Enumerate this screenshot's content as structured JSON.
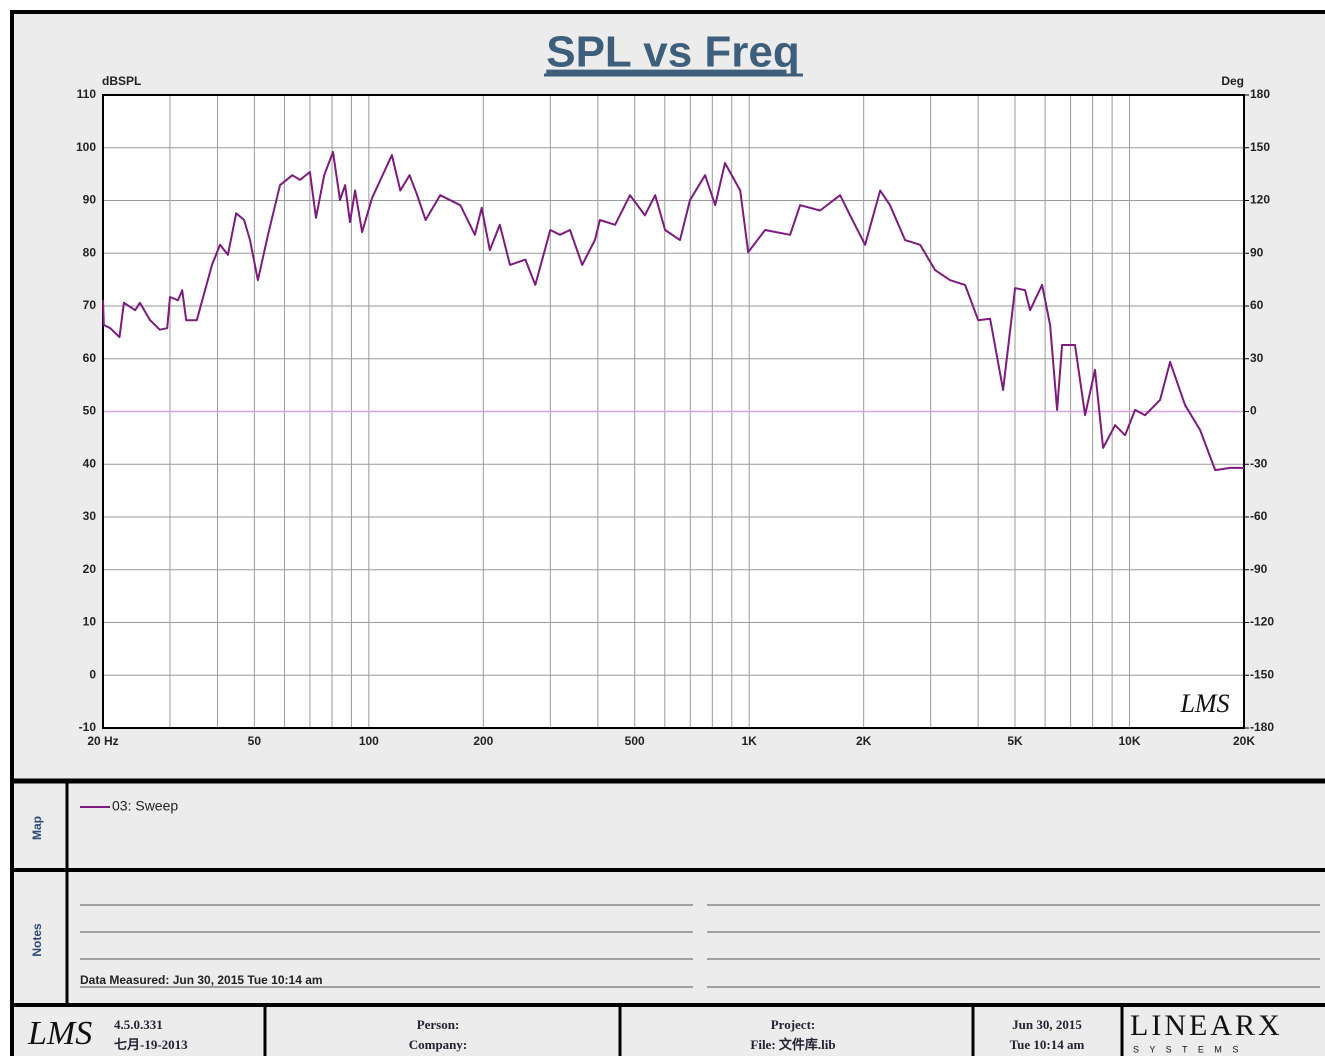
{
  "chart_data": {
    "type": "line",
    "title": "SPL vs Freq",
    "ylabel": "dBSPL",
    "y2label": "Deg",
    "xscale": "log",
    "xlim": [
      20,
      20000
    ],
    "xticks": [
      {
        "value": 20,
        "label": "20 Hz"
      },
      50,
      100,
      200,
      500,
      {
        "value": 1000,
        "label": "1K"
      },
      {
        "value": 2000,
        "label": "2K"
      },
      {
        "value": 5000,
        "label": "5K"
      },
      {
        "value": 10000,
        "label": "10K"
      },
      {
        "value": 20000,
        "label": "20K"
      }
    ],
    "x_minor_ticks": [
      30,
      40,
      60,
      70,
      80,
      90,
      300,
      400,
      600,
      700,
      800,
      900,
      3000,
      4000,
      6000,
      7000,
      8000,
      9000
    ],
    "ylim": [
      -10,
      110
    ],
    "yticks": [
      110,
      100,
      90,
      80,
      70,
      60,
      50,
      40,
      30,
      20,
      10,
      0,
      -10
    ],
    "y2lim": [
      -180,
      180
    ],
    "y2ticks": [
      180,
      150,
      120,
      90,
      60,
      30,
      0,
      -30,
      -60,
      -90,
      -120,
      -150,
      -180
    ],
    "y2_refline": 0,
    "refline_color": "#d9a6e6",
    "grid": true,
    "grid_color": "#9a9a9a",
    "watermark": "LMS",
    "series": [
      {
        "name": "03: Sweep",
        "color": "#7d1b80",
        "x": [
          20,
          20.1,
          20.9,
          22.1,
          22.7,
          24.3,
          25.0,
          26.6,
          28.2,
          29.5,
          30.0,
          31.5,
          32.3,
          33.1,
          35.3,
          38.7,
          40.6,
          42.6,
          44.8,
          47.0,
          48.7,
          51.1,
          54.3,
          58.4,
          62.9,
          65.9,
          70.0,
          72.6,
          76.3,
          80.5,
          84.0,
          86.6,
          89.2,
          92.0,
          96.0,
          102,
          115,
          121,
          128,
          134,
          141,
          154,
          174,
          190,
          198,
          208,
          221,
          235,
          258,
          274,
          300,
          318,
          338,
          364,
          393,
          405,
          444,
          486,
          532,
          566,
          601,
          658,
          699,
          766,
          814,
          864,
          947,
          994,
          1101,
          1281,
          1361,
          1536,
          1734,
          1842,
          2017,
          2210,
          2346,
          2570,
          2815,
          3083,
          3375,
          3696,
          4000,
          4300,
          4652,
          5003,
          5314,
          5477,
          5891,
          6183,
          6450,
          6648,
          7191,
          7641,
          8117,
          8522,
          9163,
          9737,
          10343,
          10990,
          12035,
          12786,
          13998,
          15336,
          16795,
          18387,
          20000
        ],
        "values": [
          71.1,
          66.4,
          65.8,
          64.1,
          70.6,
          69.2,
          70.6,
          67.3,
          65.5,
          65.8,
          71.7,
          71.1,
          73.0,
          67.3,
          67.3,
          77.8,
          81.6,
          79.7,
          87.6,
          86.3,
          82.5,
          74.9,
          83.5,
          92.9,
          94.8,
          93.9,
          95.4,
          86.7,
          94.8,
          99.2,
          90.1,
          92.9,
          85.9,
          91.9,
          84.0,
          90.5,
          98.6,
          91.9,
          94.8,
          91.0,
          86.3,
          91.0,
          89.1,
          83.5,
          88.6,
          80.6,
          85.4,
          77.8,
          78.8,
          74.0,
          84.4,
          83.5,
          84.4,
          77.8,
          82.5,
          86.3,
          85.4,
          91.0,
          87.2,
          91.0,
          84.4,
          82.5,
          90.1,
          94.8,
          89.1,
          97.1,
          91.9,
          80.2,
          84.4,
          83.5,
          89.1,
          88.1,
          91.0,
          87.2,
          81.6,
          91.9,
          89.1,
          82.5,
          81.6,
          76.8,
          74.9,
          74.0,
          67.3,
          67.6,
          54.1,
          73.4,
          73.0,
          69.2,
          74.0,
          66.4,
          50.3,
          62.6,
          62.6,
          49.3,
          57.9,
          43.1,
          47.4,
          45.5,
          50.3,
          49.3,
          52.2,
          59.4,
          51.2,
          46.5,
          38.9,
          39.3,
          39.3
        ]
      }
    ]
  },
  "panels": {
    "map_label": "Map",
    "notes_label": "Notes",
    "notes_text": "Data Measured: Jun 30, 2015  Tue 10:14 am"
  },
  "footer": {
    "logo": "LMS",
    "version": "4.5.0.331",
    "build_date": "七月-19-2013",
    "person": "Person:",
    "company": "Company:",
    "project": "Project:",
    "file": "File: 文件库.lib",
    "date": "Jun 30, 2015",
    "time": "Tue 10:14 am",
    "brand": "LINEARX",
    "brand_sub": "S Y S T E M S"
  }
}
